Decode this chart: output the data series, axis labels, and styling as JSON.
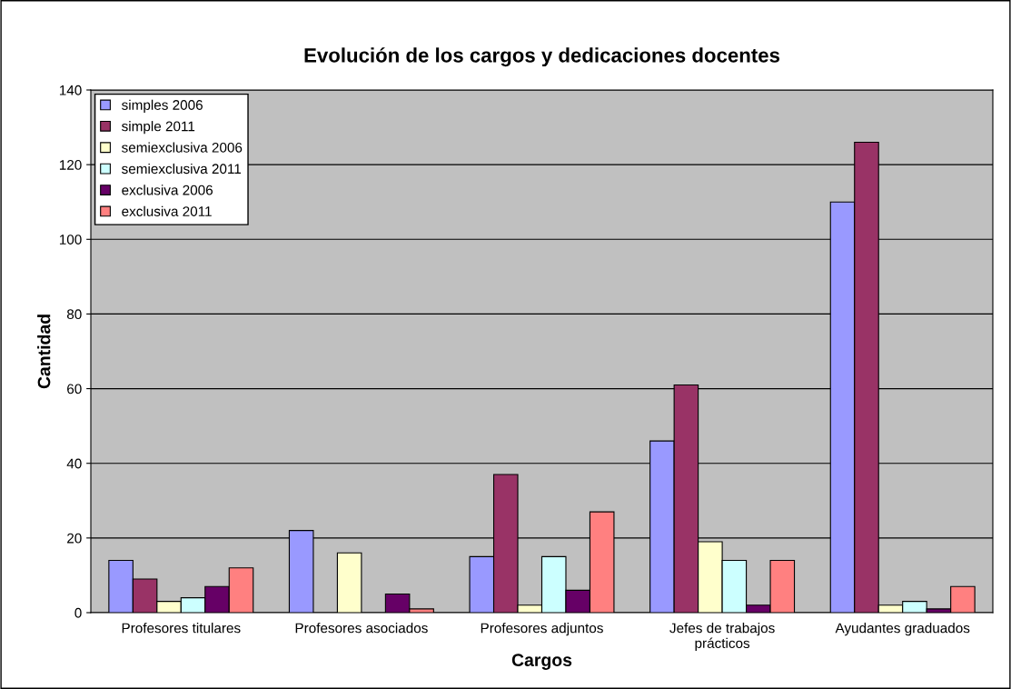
{
  "chart_data": {
    "type": "bar",
    "title": "Evolución de los cargos y dedicaciones docentes",
    "xlabel": "Cargos",
    "ylabel": "Cantidad",
    "categories": [
      "Profesores titulares",
      "Profesores asociados",
      "Profesores adjuntos",
      "Jefes de trabajos\nprácticos",
      "Ayudantes graduados"
    ],
    "series": [
      {
        "name": "simples 2006",
        "color": "#9999ff",
        "values": [
          14,
          22,
          15,
          46,
          110
        ]
      },
      {
        "name": "simple 2011",
        "color": "#993366",
        "values": [
          9,
          null,
          37,
          61,
          126
        ]
      },
      {
        "name": "semiexclusiva 2006",
        "color": "#ffffcc",
        "values": [
          3,
          16,
          2,
          19,
          2
        ]
      },
      {
        "name": "semiexclusiva 2011",
        "color": "#ccffff",
        "values": [
          4,
          null,
          15,
          14,
          3
        ]
      },
      {
        "name": "exclusiva 2006",
        "color": "#660066",
        "values": [
          7,
          5,
          6,
          2,
          1
        ]
      },
      {
        "name": "exclusiva 2011",
        "color": "#ff8080",
        "values": [
          12,
          1,
          27,
          14,
          7
        ]
      }
    ],
    "ylim": [
      0,
      140
    ],
    "yticks": [
      0,
      20,
      40,
      60,
      80,
      100,
      120,
      140
    ],
    "grid": "y",
    "legend": "top left"
  }
}
